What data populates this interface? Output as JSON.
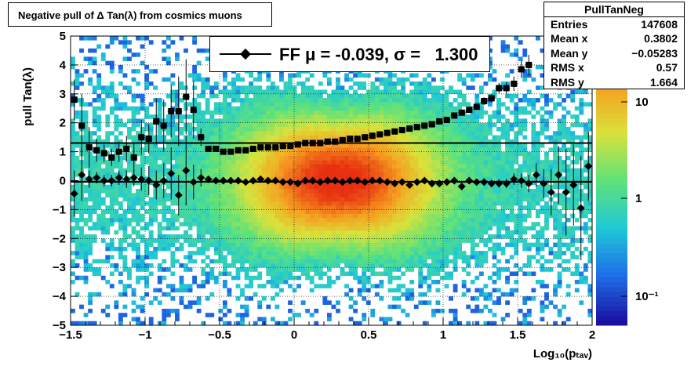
{
  "title": "Negative pull of Δ Tan(λ) from cosmics muons",
  "stats": {
    "name": "PullTanNeg",
    "rows": [
      {
        "label": "Entries",
        "value": "147608"
      },
      {
        "label": "Mean x",
        "value": "0.3802"
      },
      {
        "label": "Mean y",
        "value": "−0.05283"
      },
      {
        "label": "RMS x",
        "value": "0.57"
      },
      {
        "label": "RMS y",
        "value": "1.664"
      }
    ]
  },
  "legend": {
    "entry": "FF μ = -0.039, σ =   1.300"
  },
  "colors": {
    "markers": "#000000",
    "palette": [
      "#1a0fa0",
      "#1e6ee8",
      "#1fc8d6",
      "#5ee27a",
      "#d9e23b",
      "#f5a020",
      "#e83010"
    ]
  },
  "chart_data": {
    "type": "heatmap",
    "xlabel": "Log₁₀(pₜₐᵥ)",
    "ylabel": "pull Tan(λ)",
    "xlim": [
      -1.5,
      2.0
    ],
    "ylim": [
      -5,
      5
    ],
    "xticks": [
      "−1.5",
      "−1",
      "−0.5",
      "0",
      "0.5",
      "1",
      "1.5",
      "2"
    ],
    "yticks": [
      "5",
      "4",
      "3",
      "2",
      "1",
      "0",
      "−1",
      "−2",
      "−3",
      "−4",
      "−5"
    ],
    "zscale": "log",
    "ztick_labels": [
      "10",
      "1",
      "10⁻¹"
    ],
    "grid": true,
    "series": [
      {
        "marker": "square",
        "x": [
          -1.475,
          -1.425,
          -1.375,
          -1.325,
          -1.275,
          -1.225,
          -1.175,
          -1.125,
          -1.075,
          -1.025,
          -0.975,
          -0.925,
          -0.875,
          -0.825,
          -0.775,
          -0.725,
          -0.675,
          -0.625,
          -0.575,
          -0.525,
          -0.475,
          -0.425,
          -0.375,
          -0.325,
          -0.275,
          -0.225,
          -0.175,
          -0.125,
          -0.075,
          -0.025,
          0.025,
          0.075,
          0.125,
          0.175,
          0.225,
          0.275,
          0.325,
          0.375,
          0.425,
          0.475,
          0.525,
          0.575,
          0.625,
          0.675,
          0.725,
          0.775,
          0.825,
          0.875,
          0.925,
          0.975,
          1.025,
          1.075,
          1.125,
          1.175,
          1.225,
          1.275,
          1.325,
          1.375,
          1.425,
          1.475,
          1.525,
          1.575
        ],
        "y": [
          2.8,
          1.9,
          1.15,
          1.05,
          0.95,
          0.8,
          1.0,
          1.1,
          0.8,
          1.5,
          1.45,
          2.05,
          1.9,
          2.4,
          2.4,
          2.9,
          2.45,
          1.5,
          1.1,
          1.1,
          1.0,
          1.0,
          1.05,
          1.05,
          1.1,
          1.15,
          1.15,
          1.15,
          1.2,
          1.2,
          1.25,
          1.3,
          1.3,
          1.3,
          1.35,
          1.35,
          1.4,
          1.45,
          1.45,
          1.5,
          1.55,
          1.6,
          1.65,
          1.7,
          1.75,
          1.8,
          1.85,
          1.9,
          1.95,
          2.05,
          2.1,
          2.25,
          2.35,
          2.45,
          2.55,
          2.75,
          2.85,
          3.2,
          3.2,
          3.35,
          3.85,
          4.0
        ],
        "err": [
          0.7,
          1.1,
          0.7,
          0.4,
          0.3,
          0.3,
          0.35,
          0.45,
          0.5,
          0.6,
          0.5,
          0.8,
          0.9,
          0.9,
          1.2,
          1.3,
          1.0,
          0.3,
          0.1,
          0.06,
          0.04,
          0.03,
          0.03,
          0.02,
          0.02,
          0.02,
          0.02,
          0.02,
          0.02,
          0.02,
          0.02,
          0.02,
          0.02,
          0.02,
          0.02,
          0.02,
          0.02,
          0.02,
          0.02,
          0.02,
          0.02,
          0.02,
          0.03,
          0.03,
          0.03,
          0.04,
          0.04,
          0.05,
          0.05,
          0.06,
          0.07,
          0.08,
          0.09,
          0.1,
          0.11,
          0.13,
          0.15,
          0.18,
          0.2,
          0.25,
          0.3,
          0.35
        ]
      },
      {
        "marker": "circle",
        "x": [
          -1.475,
          -1.425,
          -1.375,
          -1.325,
          -1.275,
          -1.225,
          -1.175,
          -1.125,
          -1.075,
          -1.025,
          -0.975,
          -0.925,
          -0.875,
          -0.825,
          -0.775,
          -0.725,
          -0.675,
          -0.625,
          -0.575,
          -0.525,
          -0.475,
          -0.425,
          -0.375,
          -0.325,
          -0.275,
          -0.225,
          -0.175,
          -0.125,
          -0.075,
          -0.025,
          0.025,
          0.075,
          0.125,
          0.175,
          0.225,
          0.275,
          0.325,
          0.375,
          0.425,
          0.475,
          0.525,
          0.575,
          0.625,
          0.675,
          0.725,
          0.775,
          0.825,
          0.875,
          0.925,
          0.975,
          1.025,
          1.075,
          1.125,
          1.175,
          1.225,
          1.275,
          1.325,
          1.375,
          1.425,
          1.475,
          1.525,
          1.575,
          1.625,
          1.675,
          1.725,
          1.775,
          1.825,
          1.875,
          1.925,
          1.975
        ],
        "y": [
          -0.45,
          0.2,
          0.05,
          0.1,
          0.0,
          0.0,
          0.1,
          0.05,
          0.1,
          0.05,
          0.0,
          -0.15,
          0.0,
          0.25,
          -0.5,
          0.35,
          -0.05,
          0.1,
          0.05,
          0.0,
          0.0,
          0.0,
          0.0,
          -0.05,
          0.0,
          0.05,
          0.0,
          0.0,
          -0.05,
          -0.05,
          -0.1,
          0.0,
          0.0,
          -0.05,
          0.0,
          0.0,
          -0.05,
          0.0,
          0.0,
          -0.05,
          0.0,
          0.0,
          -0.05,
          -0.1,
          -0.05,
          -0.15,
          -0.05,
          0.0,
          -0.1,
          -0.1,
          -0.05,
          0.0,
          -0.2,
          0.0,
          -0.05,
          -0.05,
          -0.1,
          -0.1,
          -0.1,
          0.05,
          0.0,
          -0.1,
          0.2,
          -0.1,
          -0.4,
          0.2,
          -0.4,
          -0.15,
          -0.95,
          0.5
        ],
        "err": [
          0.8,
          0.9,
          0.3,
          0.2,
          0.2,
          0.2,
          0.25,
          0.3,
          0.3,
          0.4,
          0.5,
          0.5,
          0.6,
          0.9,
          0.7,
          1.2,
          0.6,
          0.3,
          0.1,
          0.05,
          0.04,
          0.03,
          0.03,
          0.02,
          0.02,
          0.02,
          0.02,
          0.02,
          0.02,
          0.02,
          0.02,
          0.02,
          0.02,
          0.02,
          0.02,
          0.02,
          0.02,
          0.02,
          0.02,
          0.02,
          0.02,
          0.02,
          0.03,
          0.03,
          0.03,
          0.03,
          0.04,
          0.04,
          0.05,
          0.05,
          0.06,
          0.07,
          0.08,
          0.09,
          0.1,
          0.1,
          0.12,
          0.14,
          0.16,
          0.2,
          0.25,
          0.3,
          0.4,
          0.5,
          0.8,
          1.0,
          1.5,
          1.4,
          1.8,
          1.2
        ]
      }
    ],
    "fit_lines": [
      {
        "y": 1.3
      },
      {
        "y": -0.039
      }
    ]
  }
}
